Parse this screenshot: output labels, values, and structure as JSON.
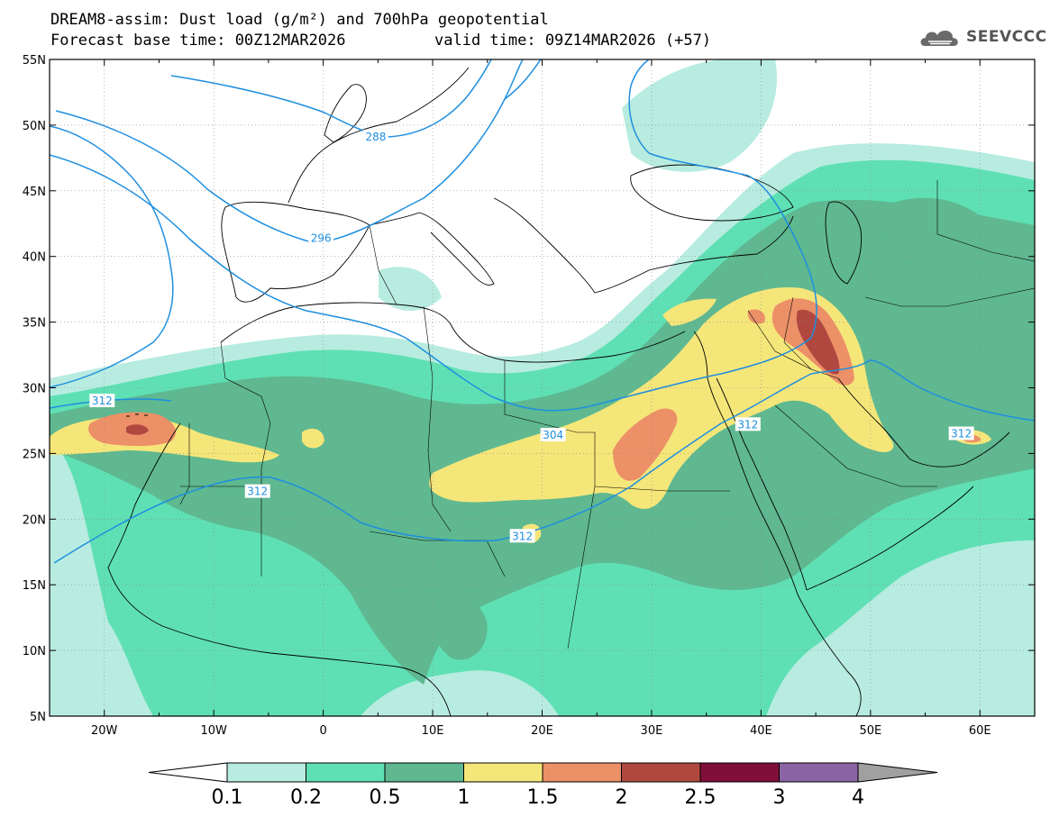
{
  "header": {
    "title_line1": "DREAM8-assim: Dust load (g/m²) and 700hPa geopotential",
    "title_line2": "Forecast base time: 00Z12MAR2026",
    "valid_time": "valid time: 09Z14MAR2026 (+57)"
  },
  "logo": {
    "text": "SEEVCCC",
    "icon": "cloud-icon"
  },
  "map": {
    "lat_labels": [
      "55N",
      "50N",
      "45N",
      "40N",
      "35N",
      "30N",
      "25N",
      "20N",
      "15N",
      "10N",
      "5N"
    ],
    "lat_values": [
      55,
      50,
      45,
      40,
      35,
      30,
      25,
      20,
      15,
      10,
      5
    ],
    "lon_labels": [
      "20W",
      "10W",
      "0",
      "10E",
      "20E",
      "30E",
      "40E",
      "50E",
      "60E"
    ],
    "lon_values": [
      -20,
      -10,
      0,
      10,
      20,
      30,
      40,
      50,
      60
    ],
    "extent": {
      "lon_min": -25,
      "lon_max": 65,
      "lat_min": 5,
      "lat_max": 55
    },
    "contour_labels": [
      {
        "text": "288",
        "lon": 4.8,
        "lat": 49.1
      },
      {
        "text": "296",
        "lon": -0.2,
        "lat": 41.4
      },
      {
        "text": "312",
        "lon": -20.2,
        "lat": 29.0
      },
      {
        "text": "304",
        "lon": 21.0,
        "lat": 26.4
      },
      {
        "text": "312",
        "lon": 38.8,
        "lat": 27.2
      },
      {
        "text": "312",
        "lon": 58.3,
        "lat": 26.5
      },
      {
        "text": "312",
        "lon": -6.0,
        "lat": 22.1
      },
      {
        "text": "312",
        "lon": 18.2,
        "lat": 18.7
      }
    ]
  },
  "colorbar": {
    "labels": [
      "0.1",
      "0.2",
      "0.5",
      "1",
      "1.5",
      "2",
      "2.5",
      "3",
      "4"
    ],
    "colors": [
      "#b8ece0",
      "#5fe0b4",
      "#5fb890",
      "#f5e67a",
      "#ec9068",
      "#b04840",
      "#80103a",
      "#8a64a4",
      "#a0a0a0"
    ],
    "over_color": "#a0a0a0",
    "under_color": "#ffffff"
  },
  "colors": {
    "contour": "#1e8fe0",
    "coast": "#000000"
  }
}
